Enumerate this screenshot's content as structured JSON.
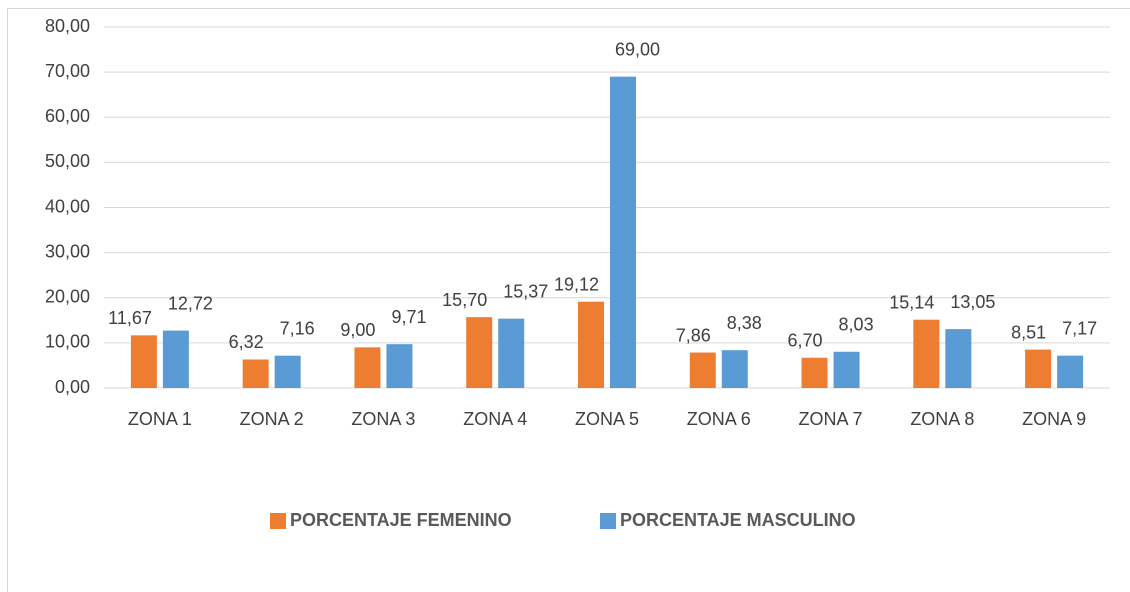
{
  "chart_data": {
    "type": "bar",
    "categories": [
      "ZONA 1",
      "ZONA 2",
      "ZONA 3",
      "ZONA 4",
      "ZONA 5",
      "ZONA 6",
      "ZONA 7",
      "ZONA 8",
      "ZONA 9"
    ],
    "series": [
      {
        "name": "PORCENTAJE FEMENINO",
        "color": "#ed7d31",
        "values": [
          11.67,
          6.32,
          9.0,
          15.7,
          19.12,
          7.86,
          6.7,
          15.14,
          8.51
        ],
        "value_labels": [
          "11,67",
          "6,32",
          "9,00",
          "15,70",
          "19,12",
          "7,86",
          "6,70",
          "15,14",
          "8,51"
        ]
      },
      {
        "name": "PORCENTAJE MASCULINO",
        "color": "#5b9bd5",
        "values": [
          12.72,
          7.16,
          9.71,
          15.37,
          69.0,
          8.38,
          8.03,
          13.05,
          7.17
        ],
        "value_labels": [
          "12,72",
          "7,16",
          "9,71",
          "15,37",
          "69,00",
          "8,38",
          "8,03",
          "13,05",
          "7,17"
        ]
      }
    ],
    "ylim": [
      0,
      80
    ],
    "yticks": [
      {
        "value": 0,
        "label": "0,00"
      },
      {
        "value": 10,
        "label": "10,00"
      },
      {
        "value": 20,
        "label": "20,00"
      },
      {
        "value": 30,
        "label": "30,00"
      },
      {
        "value": 40,
        "label": "40,00"
      },
      {
        "value": 50,
        "label": "50,00"
      },
      {
        "value": 60,
        "label": "60,00"
      },
      {
        "value": 70,
        "label": "70,00"
      },
      {
        "value": 80,
        "label": "80,00"
      }
    ],
    "grid": true,
    "legend": "bottom"
  }
}
